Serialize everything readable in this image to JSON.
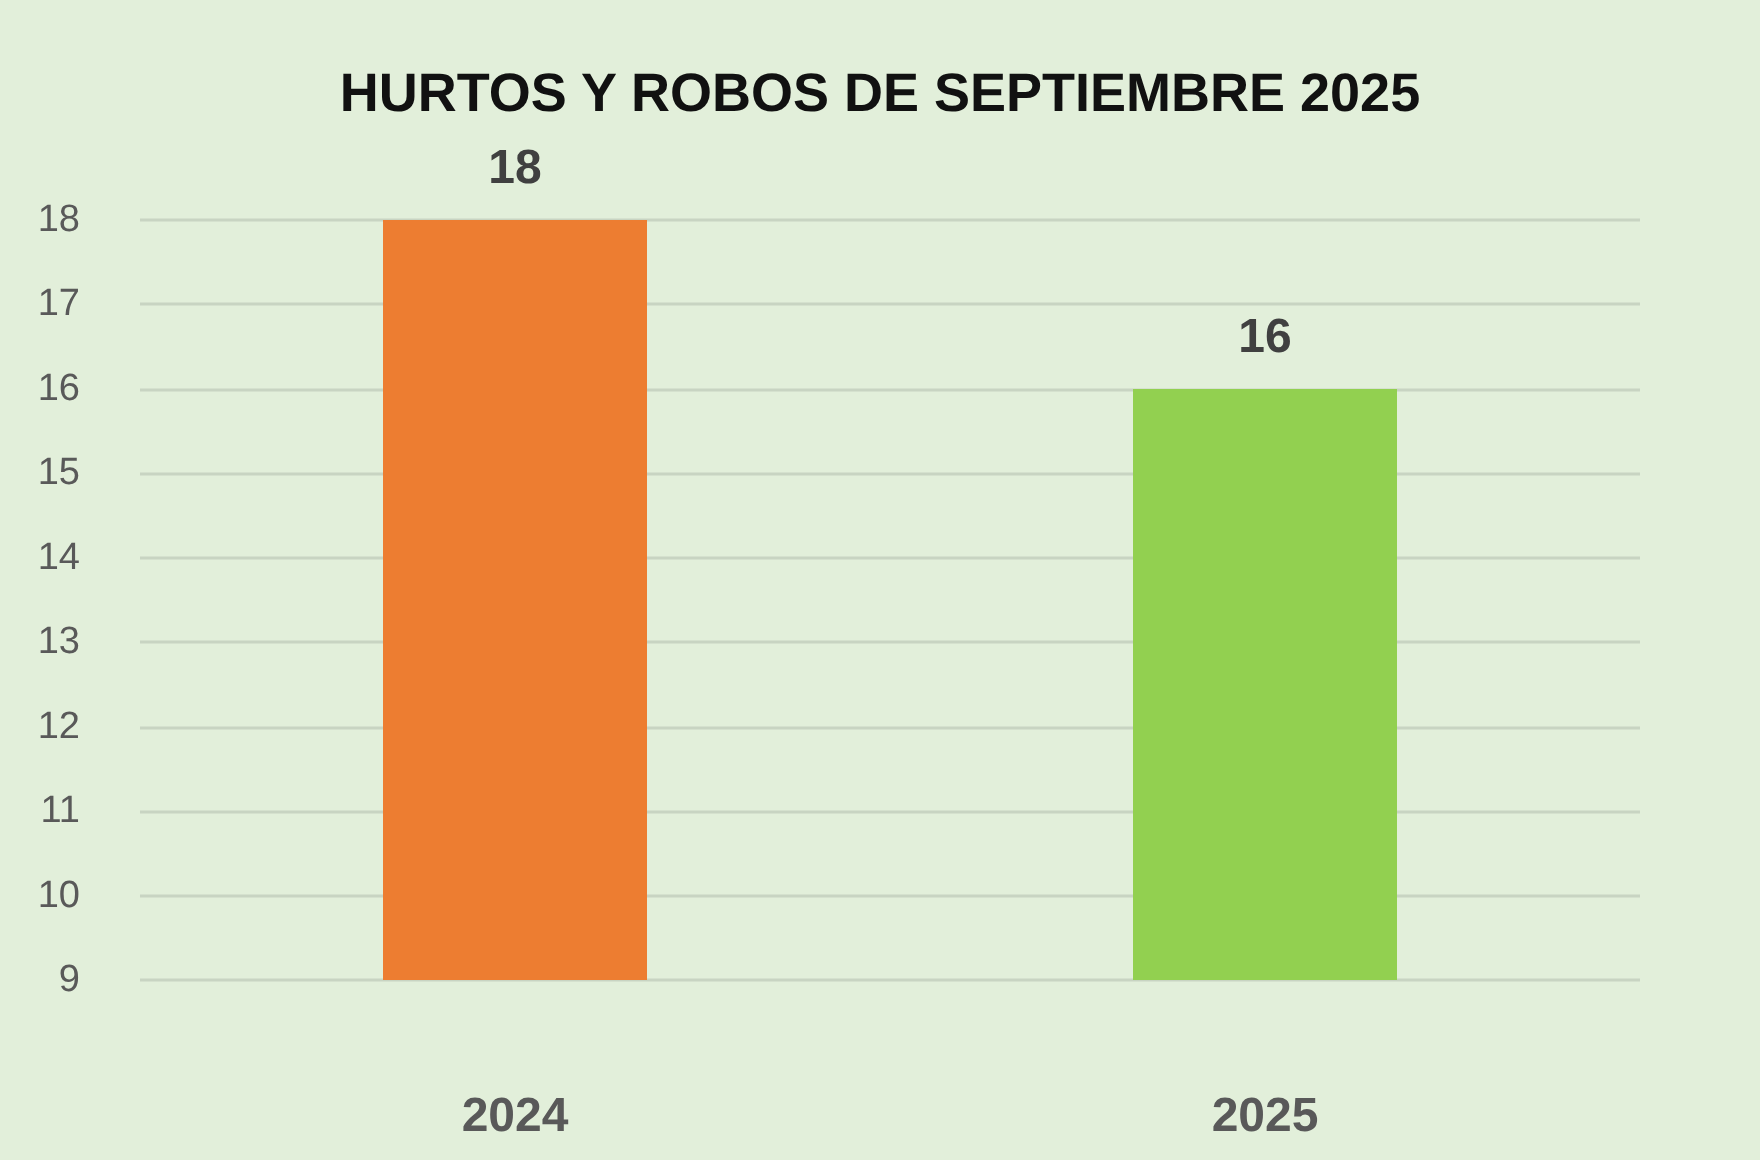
{
  "chart_data": {
    "type": "bar",
    "title": "HURTOS Y ROBOS DE SEPTIEMBRE 2025",
    "categories": [
      "2024",
      "2025"
    ],
    "values": [
      18,
      16
    ],
    "colors": [
      "#ed7d31",
      "#92d050"
    ],
    "ylim": [
      9,
      18
    ],
    "yticks": [
      9,
      10,
      11,
      12,
      13,
      14,
      15,
      16,
      17,
      18
    ],
    "grid": "y",
    "data_labels": true
  }
}
